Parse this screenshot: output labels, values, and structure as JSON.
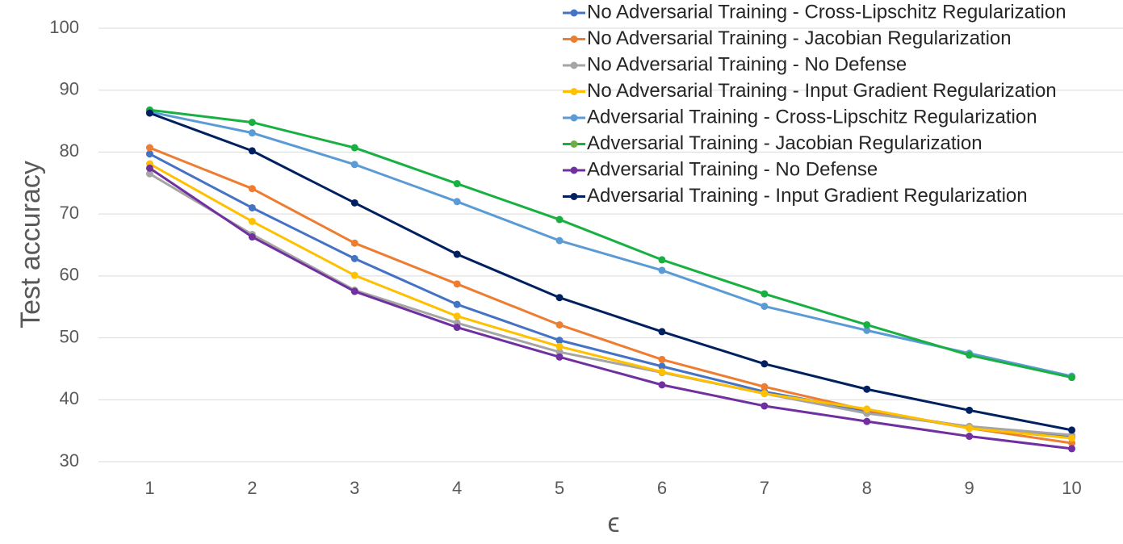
{
  "chart_data": {
    "type": "line",
    "title": "",
    "xlabel": "ϵ",
    "ylabel": "Test accuracy",
    "x": [
      1,
      2,
      3,
      4,
      5,
      6,
      7,
      8,
      9,
      10
    ],
    "ylim": [
      30,
      100
    ],
    "yticks": [
      30,
      40,
      50,
      60,
      70,
      80,
      90,
      100
    ],
    "grid": "horizontal",
    "legend_position": "top-right",
    "series": [
      {
        "name": "No Adversarial Training - Cross-Lipschitz Regularization",
        "color": "#4472C4",
        "values": [
          79.7,
          71.0,
          62.8,
          55.4,
          49.6,
          45.4,
          41.3,
          38.2,
          35.6,
          34.1
        ]
      },
      {
        "name": "No Adversarial Training - Jacobian Regularization",
        "color": "#ED7D31",
        "values": [
          80.7,
          74.1,
          65.3,
          58.7,
          52.1,
          46.5,
          42.1,
          38.3,
          35.4,
          33.0
        ]
      },
      {
        "name": "No Adversarial Training - No Defense",
        "color": "#A5A5A5",
        "values": [
          76.5,
          66.7,
          57.7,
          52.4,
          47.7,
          44.4,
          41.0,
          37.8,
          35.7,
          34.3
        ]
      },
      {
        "name": "No Adversarial Training - Input Gradient Regularization",
        "color": "#FFC000",
        "values": [
          78.1,
          68.8,
          60.1,
          53.5,
          48.6,
          44.5,
          41.0,
          38.5,
          35.4,
          33.8
        ]
      },
      {
        "name": "Adversarial Training - Cross-Lipschitz Regularization",
        "color": "#5B9BD5",
        "values": [
          86.5,
          83.1,
          78.0,
          72.0,
          65.7,
          60.9,
          55.1,
          51.2,
          47.5,
          43.8
        ]
      },
      {
        "name": "Adversarial Training - Jacobian Regularization",
        "color": "#18B040",
        "values": [
          86.8,
          84.8,
          80.7,
          74.9,
          69.1,
          62.6,
          57.1,
          52.1,
          47.2,
          43.6
        ]
      },
      {
        "name": "Adversarial Training - No Defense",
        "color": "#7030A0",
        "values": [
          77.4,
          66.3,
          57.5,
          51.7,
          46.9,
          42.4,
          39.0,
          36.5,
          34.1,
          32.1
        ]
      },
      {
        "name": "Adversarial Training - Input Gradient Regularization",
        "color": "#002060",
        "values": [
          86.3,
          80.2,
          71.8,
          63.5,
          56.5,
          51.0,
          45.8,
          41.7,
          38.3,
          35.1
        ]
      }
    ],
    "legend_marker_colors": [
      "#4472C4",
      "#ED7D31",
      "#A5A5A5",
      "#FFC000",
      "#5B9BD5",
      "#70AD47",
      "#7030A0",
      "#002060"
    ]
  }
}
